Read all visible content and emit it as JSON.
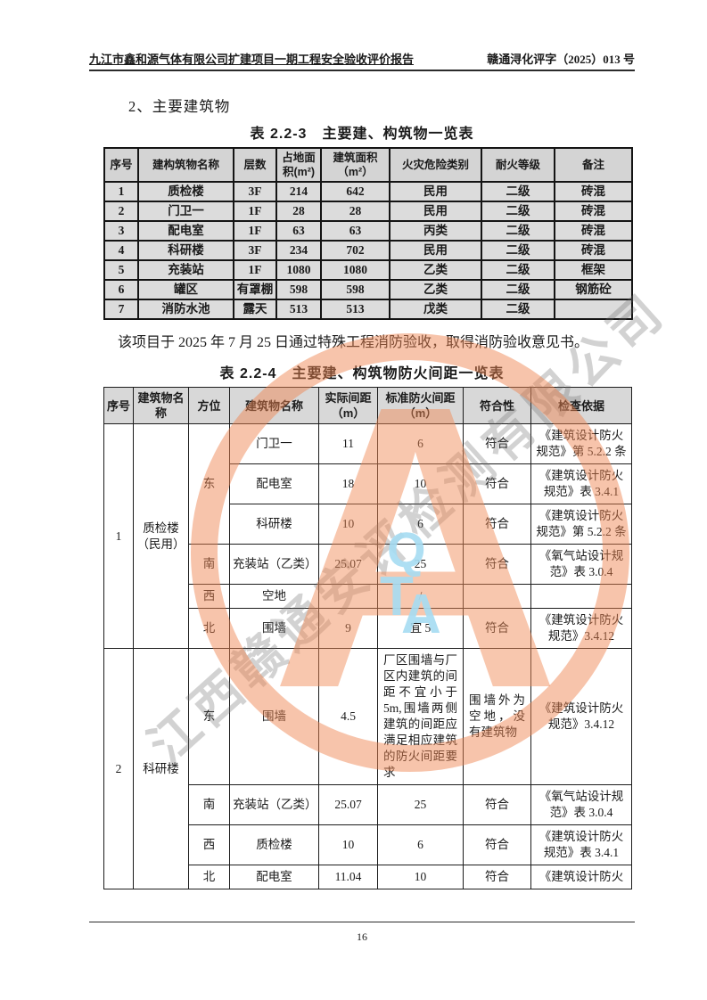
{
  "header": {
    "left_title": "九江市鑫和源气体有限公司扩建项目一期工程安全验收评价报告",
    "right_doc_no": "赣通浔化评字（2025）013 号"
  },
  "section": {
    "heading": "2、主要建筑物"
  },
  "building_table": {
    "caption": "表 2.2-3　主要建、构筑物一览表",
    "headers": [
      "序号",
      "建构筑物名称",
      "层数",
      "占地面积(m²)",
      "建筑面积（m²）",
      "火灾危险类别",
      "耐火等级",
      "备注"
    ],
    "rows": [
      [
        "1",
        "质检楼",
        "3F",
        "214",
        "642",
        "民用",
        "二级",
        "砖混"
      ],
      [
        "2",
        "门卫一",
        "1F",
        "28",
        "28",
        "民用",
        "二级",
        "砖混"
      ],
      [
        "3",
        "配电室",
        "1F",
        "63",
        "63",
        "丙类",
        "二级",
        "砖混"
      ],
      [
        "4",
        "科研楼",
        "3F",
        "234",
        "702",
        "民用",
        "二级",
        "砖混"
      ],
      [
        "5",
        "充装站",
        "1F",
        "1080",
        "1080",
        "乙类",
        "二级",
        "框架"
      ],
      [
        "6",
        "罐区",
        "有罩棚",
        "598",
        "598",
        "乙类",
        "二级",
        "钢筋砼"
      ],
      [
        "7",
        "消防水池",
        "露天",
        "513",
        "513",
        "戊类",
        "二级",
        ""
      ]
    ]
  },
  "paragraph": "该项目于 2025 年 7 月 25 日通过特殊工程消防验收，取得消防验收意见书。",
  "fire_distance_table": {
    "caption": "表 2.2-4　主要建、构筑物防火间距一览表",
    "headers": [
      "序号",
      "建筑物名称",
      "方位",
      "建筑物名称",
      "实际间距（m）",
      "标准防火间距（m）",
      "符合性",
      "检查依据"
    ],
    "groups": [
      {
        "no": "1",
        "name": "质检楼（民用）",
        "rows": [
          {
            "dir": "东",
            "dirspan": 3,
            "target": "门卫一",
            "actual": "11",
            "std": "6",
            "conform": "符合",
            "basis": "《建筑设计防火规范》第 5.2.2 条"
          },
          {
            "target": "配电室",
            "actual": "18",
            "std": "10",
            "conform": "符合",
            "basis": "《建筑设计防火规范》表 3.4.1"
          },
          {
            "target": "科研楼",
            "actual": "10",
            "std": "6",
            "conform": "符合",
            "basis": "《建筑设计防火规范》第 5.2.2 条"
          },
          {
            "dir": "南",
            "dirspan": 1,
            "target": "充装站（乙类）",
            "actual": "25.07",
            "std": "25",
            "conform": "符合",
            "basis": "《氧气站设计规范》表 3.0.4"
          },
          {
            "dir": "西",
            "dirspan": 1,
            "target": "空地",
            "actual": "",
            "std": "/",
            "conform": "",
            "basis": ""
          },
          {
            "dir": "北",
            "dirspan": 1,
            "target": "围墙",
            "actual": "9",
            "std": "宜 5",
            "conform": "符合",
            "basis": "《建筑设计防火规范》3.4.12"
          }
        ]
      },
      {
        "no": "2",
        "name": "科研楼",
        "rows": [
          {
            "dir": "东",
            "dirspan": 1,
            "target": "围墙",
            "actual": "4.5",
            "std": "厂区围墙与厂区内建筑的间距不宜小于 5m,围墙两侧建筑的间距应满足相应建筑的防火间距要求",
            "conform": "围墙外为空地，没有建筑物",
            "basis": "《建筑设计防火规范》3.4.12"
          },
          {
            "dir": "南",
            "dirspan": 1,
            "target": "充装站（乙类）",
            "actual": "25.07",
            "std": "25",
            "conform": "符合",
            "basis": "《氧气站设计规范》表 3.0.4"
          },
          {
            "dir": "西",
            "dirspan": 1,
            "target": "质检楼",
            "actual": "10",
            "std": "6",
            "conform": "符合",
            "basis": "《建筑设计防火规范》表 3.4.1"
          },
          {
            "dir": "北",
            "dirspan": 1,
            "target": "配电室",
            "actual": "11.04",
            "std": "10",
            "conform": "符合",
            "basis": "《建筑设计防火"
          }
        ]
      }
    ]
  },
  "watermark": {
    "diagonal_text": "江西赣通安评检测有限公司",
    "stamp_letter_q": "Q",
    "stamp_letter_t": "T",
    "stamp_letter_a": "A",
    "stamp_big_letter": "A",
    "ring_color": "#ee8350",
    "letters_color": "#a5dcf2"
  },
  "footer": {
    "page_number": "16"
  }
}
